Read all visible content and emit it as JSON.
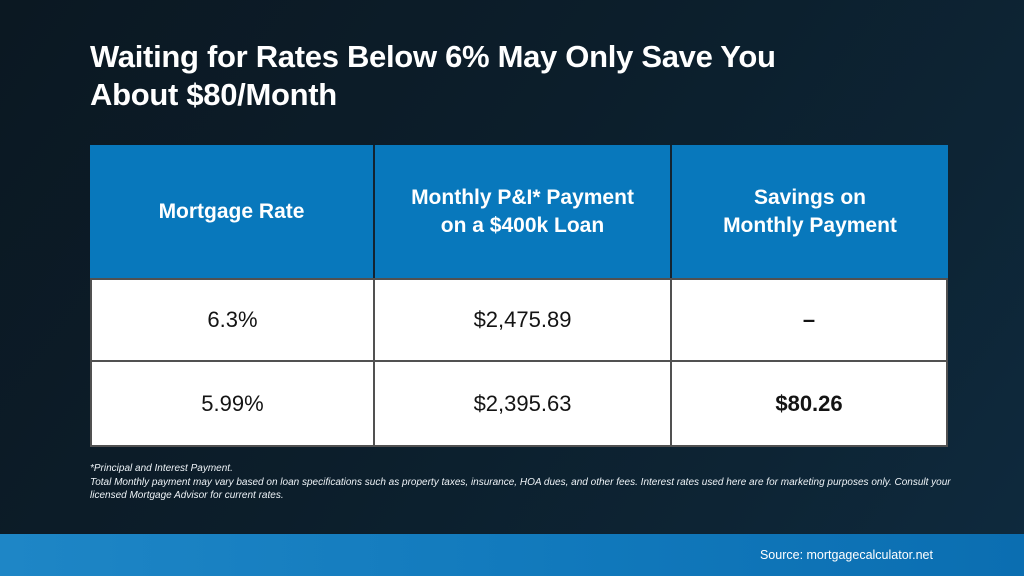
{
  "title": "Waiting for Rates Below 6% May Only Save You\nAbout $80/Month",
  "table": {
    "headers": [
      "Mortgage Rate",
      "Monthly P&I* Payment\non a $400k Loan",
      "Savings on\nMonthly Payment"
    ],
    "rows": [
      [
        "6.3%",
        "$2,475.89",
        "–"
      ],
      [
        "5.99%",
        "$2,395.63",
        "$80.26"
      ]
    ]
  },
  "footnote": "*Principal and Interest Payment.\nTotal Monthly payment may vary based on loan specifications such as property taxes, insurance, HOA dues, and other fees. Interest rates used here are for marketing purposes only. Consult your\nlicensed Mortgage Advisor for current rates.",
  "source": "Source: mortgagecalculator.net",
  "colors": {
    "header_blue": "#0878BC",
    "bottom_bar_left": "#1E86C6",
    "bottom_bar_right": "#0B6EB1",
    "background_dark_navy": "#0B1822",
    "cell_border_gray": "#515151"
  },
  "chart_data": {
    "type": "table",
    "title": "Waiting for Rates Below 6% May Only Save You About $80/Month",
    "columns": [
      "Mortgage Rate",
      "Monthly P&I* Payment on a $400k Loan",
      "Savings on Monthly Payment"
    ],
    "rows": [
      [
        "6.3%",
        "$2,475.89",
        "–"
      ],
      [
        "5.99%",
        "$2,395.63",
        "$80.26"
      ]
    ],
    "numeric": {
      "mortgage_rates_percent": [
        6.3,
        5.99
      ],
      "monthly_payments_usd": [
        2475.89,
        2395.63
      ],
      "savings_usd": [
        null,
        80.26
      ],
      "loan_amount_usd": 400000
    },
    "annotations": [
      "*Principal and Interest Payment.",
      "Total Monthly payment may vary based on loan specifications such as property taxes, insurance, HOA dues, and other fees. Interest rates used here are for marketing purposes only. Consult your licensed Mortgage Advisor for current rates."
    ],
    "source": "Source: mortgagecalculator.net"
  }
}
